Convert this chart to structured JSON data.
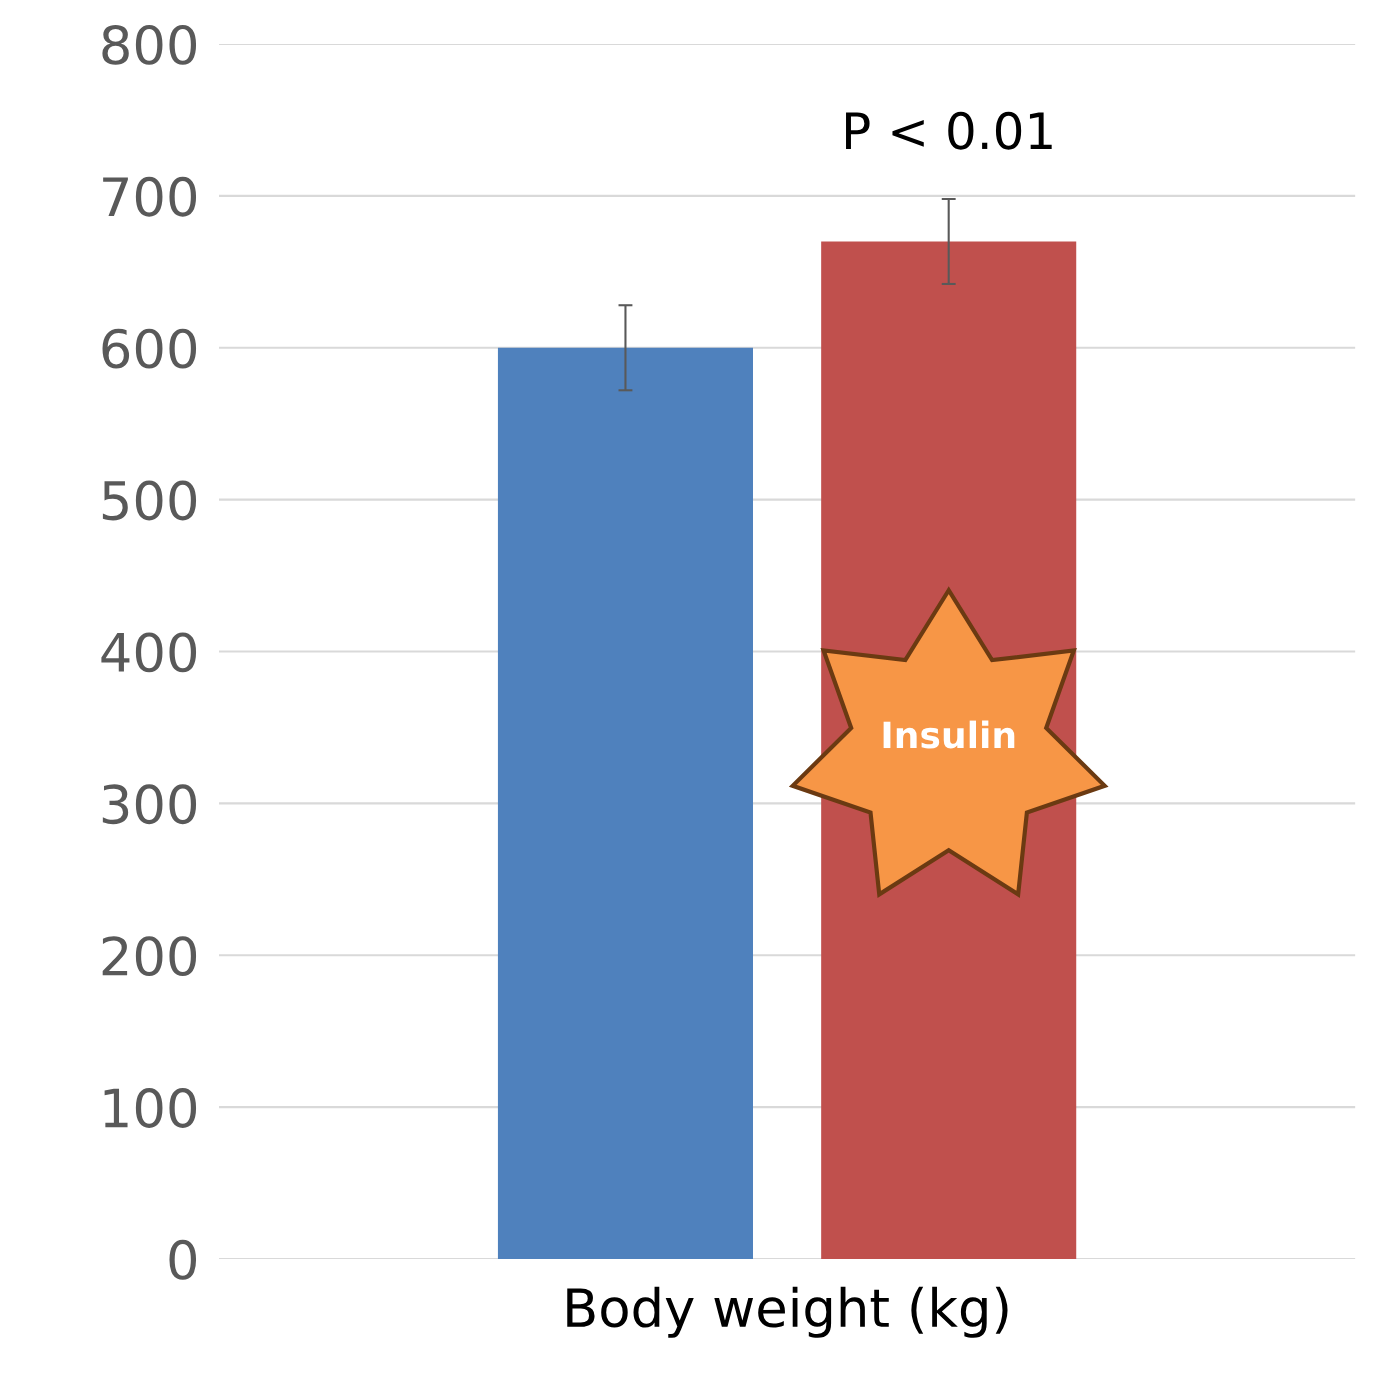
{
  "chart_data": {
    "type": "bar",
    "categories": [
      "Body weight (kg)"
    ],
    "series": [
      {
        "color": "#4f81bd",
        "values": [
          600
        ],
        "errors": [
          28
        ]
      },
      {
        "name": "Insulin",
        "color": "#c0504d",
        "values": [
          670
        ],
        "errors": [
          28
        ]
      }
    ],
    "ylim": [
      0,
      800
    ],
    "yticks": [
      0,
      100,
      200,
      300,
      400,
      500,
      600,
      700,
      800
    ],
    "grid": "y",
    "annotations": [
      "P < 0.01"
    ]
  }
}
